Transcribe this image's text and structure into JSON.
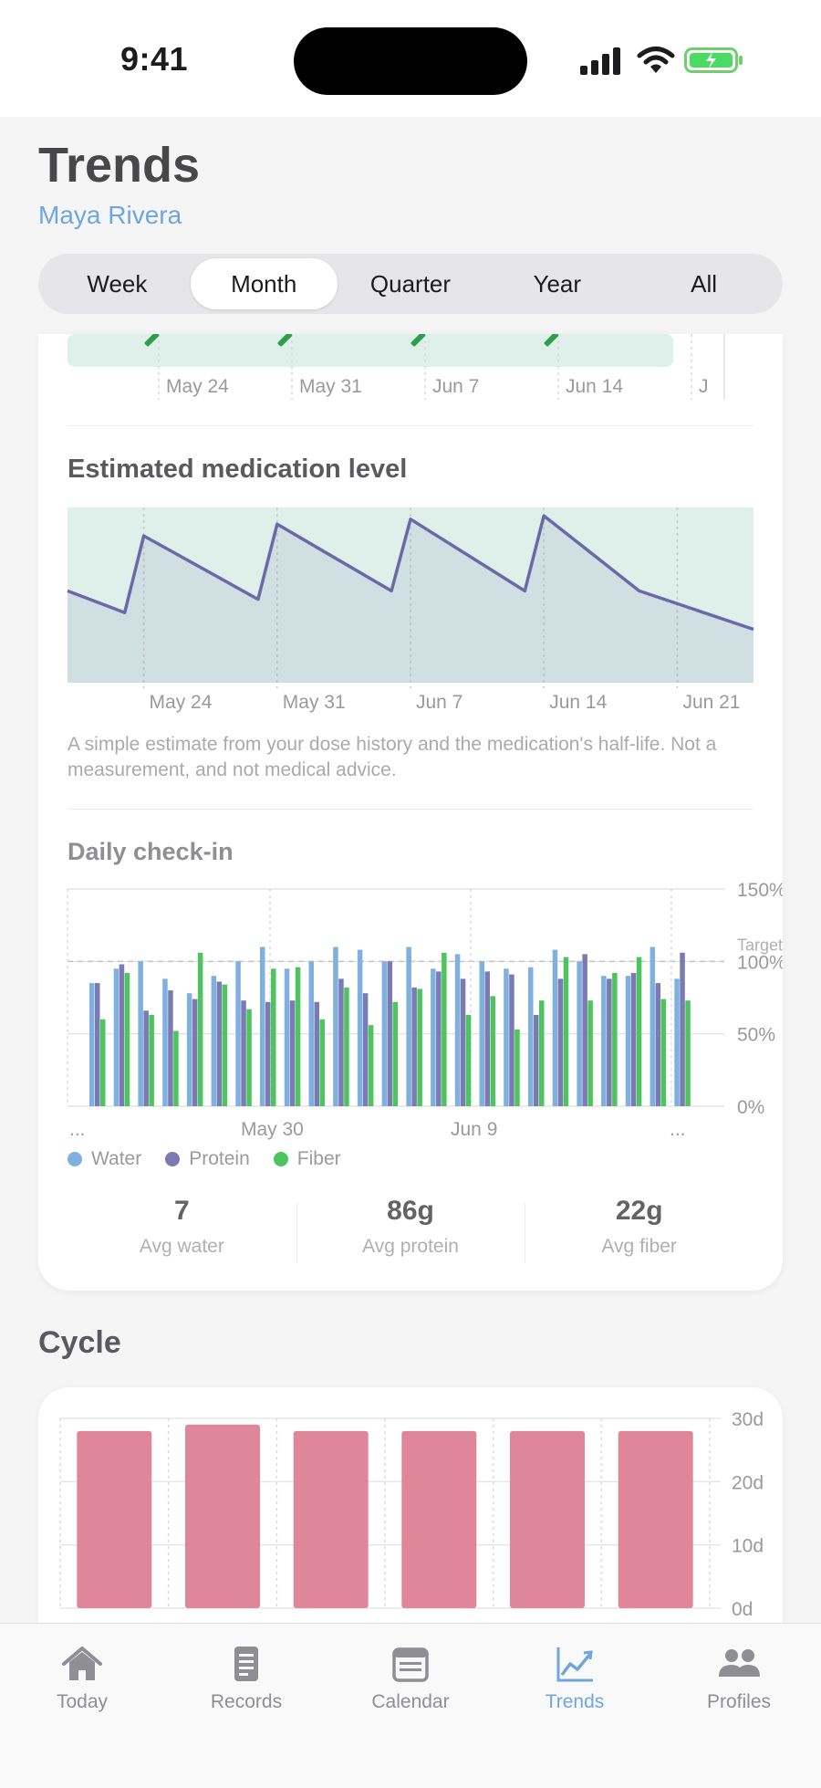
{
  "status_bar": {
    "time": "9:41"
  },
  "header": {
    "title": "Trends",
    "profile_name": "Maya Rivera"
  },
  "period_tabs": [
    {
      "label": "Week",
      "active": false
    },
    {
      "label": "Month",
      "active": true
    },
    {
      "label": "Quarter",
      "active": false
    },
    {
      "label": "Year",
      "active": false
    },
    {
      "label": "All",
      "active": false
    }
  ],
  "dose_strip": {
    "ticks": [
      "May 24",
      "May 31",
      "Jun 7",
      "Jun 14",
      "J"
    ],
    "marker_icon": "syringe-icon"
  },
  "medication": {
    "title": "Estimated medication level",
    "note": "A simple estimate from your dose history and the medication's half-life. Not a measurement, and not medical advice."
  },
  "checkin": {
    "title": "Daily check-in",
    "legend": [
      {
        "label": "Water",
        "color": "#7fb0e0"
      },
      {
        "label": "Protein",
        "color": "#7a7bb0"
      },
      {
        "label": "Fiber",
        "color": "#4ec45e"
      }
    ],
    "stats": [
      {
        "value": "7",
        "label": "Avg water"
      },
      {
        "value": "86g",
        "label": "Avg protein"
      },
      {
        "value": "22g",
        "label": "Avg fiber"
      }
    ]
  },
  "cycle": {
    "title": "Cycle"
  },
  "tabbar": [
    {
      "label": "Today",
      "icon": "house-icon",
      "active": false
    },
    {
      "label": "Records",
      "icon": "records-icon",
      "active": false
    },
    {
      "label": "Calendar",
      "icon": "calendar-icon",
      "active": false
    },
    {
      "label": "Trends",
      "icon": "chart-icon",
      "active": true
    },
    {
      "label": "Profiles",
      "icon": "people-icon",
      "active": false
    }
  ],
  "chart_data": [
    {
      "type": "line",
      "title": "Estimated medication level",
      "x_ticks": [
        "May 24",
        "May 31",
        "Jun 7",
        "Jun 14",
        "Jun 21"
      ],
      "x": [
        "May 20",
        "May 23",
        "May 24",
        "May 30",
        "May 31",
        "Jun 6",
        "Jun 7",
        "Jun 13",
        "Jun 14",
        "Jun 19",
        "Jun 25"
      ],
      "values": [
        0.55,
        0.42,
        0.88,
        0.5,
        0.95,
        0.55,
        0.98,
        0.55,
        1.0,
        0.55,
        0.32
      ],
      "ylim": [
        0,
        1.05
      ],
      "grid": true
    },
    {
      "type": "bar",
      "title": "Daily check-in",
      "x_ticks": [
        "...",
        "May 30",
        "Jun 9",
        "..."
      ],
      "y_ticks": [
        "0%",
        "50%",
        "100%",
        "150%"
      ],
      "target_label": "Target",
      "target": 100,
      "ylim": [
        0,
        150
      ],
      "series": [
        {
          "name": "Water",
          "values": [
            85,
            95,
            100,
            88,
            78,
            90,
            100,
            110,
            95,
            100,
            110,
            108,
            100,
            110,
            95,
            105,
            100,
            95,
            96,
            108,
            100,
            90,
            90,
            110,
            88
          ]
        },
        {
          "name": "Protein",
          "values": [
            85,
            98,
            66,
            80,
            74,
            86,
            73,
            72,
            73,
            72,
            88,
            78,
            100,
            82,
            93,
            88,
            93,
            91,
            63,
            88,
            105,
            88,
            92,
            85,
            106
          ]
        },
        {
          "name": "Fiber",
          "values": [
            60,
            92,
            63,
            52,
            106,
            84,
            67,
            95,
            96,
            60,
            82,
            56,
            72,
            81,
            106,
            63,
            76,
            53,
            73,
            103,
            73,
            92,
            103,
            74,
            73
          ]
        }
      ]
    },
    {
      "type": "bar",
      "title": "Cycle",
      "y_ticks": [
        "0d",
        "10d",
        "20d",
        "30d"
      ],
      "ylim": [
        0,
        30
      ],
      "values": [
        28,
        29,
        28,
        28,
        28,
        28
      ]
    }
  ]
}
